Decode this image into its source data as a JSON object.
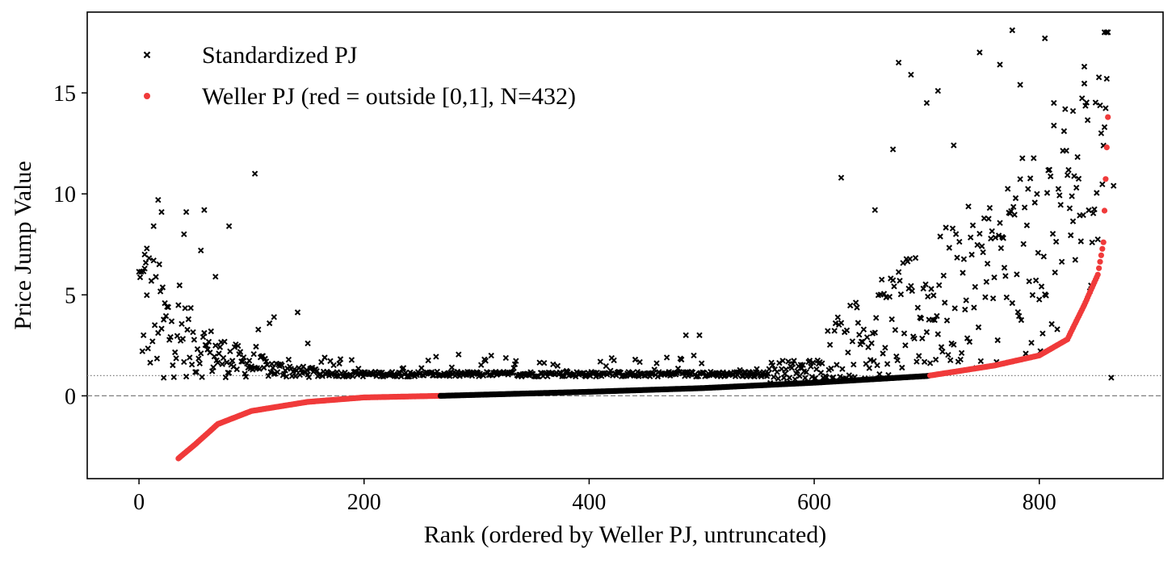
{
  "chart_data": {
    "type": "scatter",
    "title": "",
    "xlabel": "Rank (ordered by Weller PJ, untruncated)",
    "ylabel": "Price Jump Value",
    "xlim": [
      -46,
      910
    ],
    "ylim": [
      -4.1,
      19.0
    ],
    "x_ticks": [
      0,
      200,
      400,
      600,
      800
    ],
    "x_tick_labels": [
      "0",
      "200",
      "400",
      "600",
      "800"
    ],
    "y_ticks": [
      0,
      5,
      10,
      15
    ],
    "y_tick_labels": [
      "0",
      "5",
      "10",
      "15"
    ],
    "grid": false,
    "legend_position": "top-left",
    "n_points": 862,
    "reference_lines": [
      {
        "y": 0,
        "style": "dashed",
        "color": "#7f7f7f"
      },
      {
        "y": 1,
        "style": "dotted",
        "color": "#7f7f7f"
      }
    ],
    "series": [
      {
        "name": "Standardized PJ",
        "marker": "x",
        "color": "#000000",
        "description_of_trend": "rank-ordered; large dispersion at low ranks (~1-10) and high ranks (~1-18), clustered near 1 in middle ranks",
        "notable_points": [
          {
            "x": 4,
            "y": 3.0
          },
          {
            "x": 5,
            "y": 7.0
          },
          {
            "x": 7,
            "y": 7.3
          },
          {
            "x": 13,
            "y": 8.4
          },
          {
            "x": 17,
            "y": 9.7
          },
          {
            "x": 20,
            "y": 9.1
          },
          {
            "x": 22,
            "y": 0.9
          },
          {
            "x": 40,
            "y": 8.0
          },
          {
            "x": 42,
            "y": 9.1
          },
          {
            "x": 55,
            "y": 7.2
          },
          {
            "x": 58,
            "y": 9.2
          },
          {
            "x": 68,
            "y": 5.9
          },
          {
            "x": 80,
            "y": 8.4
          },
          {
            "x": 103,
            "y": 11.0
          },
          {
            "x": 120,
            "y": 3.9
          },
          {
            "x": 150,
            "y": 2.6
          },
          {
            "x": 486,
            "y": 3.0
          },
          {
            "x": 498,
            "y": 3.0
          },
          {
            "x": 624,
            "y": 10.8
          },
          {
            "x": 654,
            "y": 9.2
          },
          {
            "x": 670,
            "y": 12.2
          },
          {
            "x": 675,
            "y": 16.5
          },
          {
            "x": 686,
            "y": 15.9
          },
          {
            "x": 700,
            "y": 14.5
          },
          {
            "x": 710,
            "y": 15.1
          },
          {
            "x": 724,
            "y": 12.4
          },
          {
            "x": 747,
            "y": 17.0
          },
          {
            "x": 765,
            "y": 16.4
          },
          {
            "x": 776,
            "y": 18.1
          },
          {
            "x": 783,
            "y": 15.4
          },
          {
            "x": 805,
            "y": 17.7
          },
          {
            "x": 813,
            "y": 14.5
          },
          {
            "x": 830,
            "y": 14.1
          },
          {
            "x": 840,
            "y": 16.3
          },
          {
            "x": 858,
            "y": 13.3
          },
          {
            "x": 860,
            "y": 15.7
          },
          {
            "x": 866,
            "y": 10.4
          },
          {
            "x": 864,
            "y": 0.9
          }
        ]
      },
      {
        "name": "Weller PJ (red = outside [0,1], N=432)",
        "marker": "o",
        "color_outside": "#f03a3a",
        "color_inside": "#000000",
        "description_of_trend": "monotonically increasing sigmoid-like curve from about -3.1 at rank 35 to about 13.8 at rank 860; values inside [0,1] drawn in black from rank ~268 to ~700",
        "anchor_points": [
          {
            "x": 35,
            "y": -3.1
          },
          {
            "x": 50,
            "y": -2.4
          },
          {
            "x": 70,
            "y": -1.4
          },
          {
            "x": 100,
            "y": -0.75
          },
          {
            "x": 150,
            "y": -0.3
          },
          {
            "x": 200,
            "y": -0.08
          },
          {
            "x": 268,
            "y": 0.0
          },
          {
            "x": 400,
            "y": 0.2
          },
          {
            "x": 500,
            "y": 0.38
          },
          {
            "x": 600,
            "y": 0.65
          },
          {
            "x": 700,
            "y": 0.98
          },
          {
            "x": 760,
            "y": 1.5
          },
          {
            "x": 800,
            "y": 2.0
          },
          {
            "x": 825,
            "y": 2.8
          },
          {
            "x": 840,
            "y": 4.5
          },
          {
            "x": 852,
            "y": 6.0
          },
          {
            "x": 857,
            "y": 7.6
          },
          {
            "x": 860,
            "y": 12.3
          },
          {
            "x": 861,
            "y": 13.8
          }
        ]
      }
    ]
  }
}
